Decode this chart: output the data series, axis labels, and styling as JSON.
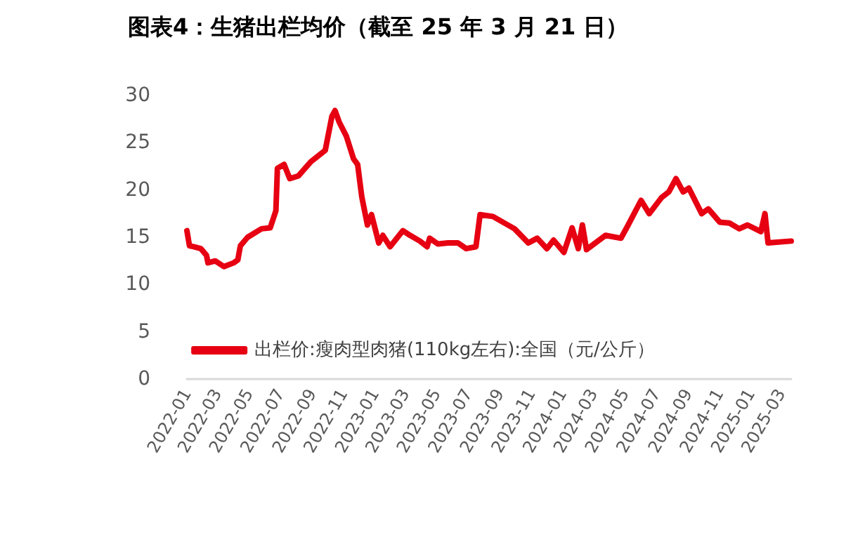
{
  "chart_data": {
    "type": "line",
    "title": "图表4：生猪出栏均价（截至 25 年 3 月 21 日）",
    "x": [
      "2022-01-01",
      "2022-01-06",
      "2022-01-14",
      "2022-01-28",
      "2022-02-08",
      "2022-02-11",
      "2022-02-25",
      "2022-03-14",
      "2022-04-02",
      "2022-04-10",
      "2022-04-15",
      "2022-04-29",
      "2022-05-26",
      "2022-06-12",
      "2022-06-23",
      "2022-06-26",
      "2022-07-09",
      "2022-07-20",
      "2022-08-06",
      "2022-08-30",
      "2022-09-27",
      "2022-10-10",
      "2022-10-16",
      "2022-10-24",
      "2022-11-07",
      "2022-11-21",
      "2022-11-29",
      "2022-12-07",
      "2022-12-18",
      "2022-12-26",
      "2023-01-09",
      "2023-01-17",
      "2023-01-31",
      "2023-02-25",
      "2023-03-11",
      "2023-03-30",
      "2023-04-13",
      "2023-04-18",
      "2023-05-04",
      "2023-05-24",
      "2023-06-12",
      "2023-06-28",
      "2023-07-17",
      "2023-07-25",
      "2023-08-19",
      "2023-09-30",
      "2023-10-27",
      "2023-11-13",
      "2023-12-02",
      "2023-12-15",
      "2024-01-04",
      "2024-01-20",
      "2024-02-01",
      "2024-02-09",
      "2024-02-17",
      "2024-03-25",
      "2024-04-24",
      "2024-05-08",
      "2024-06-02",
      "2024-06-18",
      "2024-07-12",
      "2024-07-26",
      "2024-08-09",
      "2024-08-23",
      "2024-09-03",
      "2024-09-28",
      "2024-10-11",
      "2024-11-02",
      "2024-11-21",
      "2024-12-10",
      "2024-12-26",
      "2025-01-21",
      "2025-01-29",
      "2025-02-04",
      "2025-03-21"
    ],
    "series": [
      {
        "name": "出栏价:瘦肉型肉猪(110kg左右):全国（元/公斤）",
        "color": "#e60012",
        "values": [
          15.7,
          14.1,
          14.0,
          13.8,
          13.1,
          12.3,
          12.5,
          11.9,
          12.3,
          12.6,
          14.1,
          15.0,
          15.9,
          16.0,
          17.8,
          22.3,
          22.7,
          21.2,
          21.5,
          23.0,
          24.2,
          27.8,
          28.4,
          27.2,
          25.7,
          23.3,
          22.7,
          19.3,
          16.3,
          17.4,
          14.4,
          15.2,
          14.0,
          15.7,
          15.2,
          14.6,
          14.0,
          14.9,
          14.3,
          14.4,
          14.4,
          13.8,
          14.0,
          17.4,
          17.2,
          15.9,
          14.4,
          14.9,
          13.8,
          14.7,
          13.4,
          16.0,
          13.8,
          16.3,
          13.7,
          15.2,
          14.9,
          16.3,
          18.9,
          17.5,
          19.2,
          19.8,
          21.2,
          19.8,
          20.2,
          17.5,
          18.0,
          16.6,
          16.5,
          15.9,
          16.3,
          15.6,
          17.5,
          14.4,
          14.6
        ]
      }
    ],
    "xlim": [
      "2022-01-01",
      "2025-03-21"
    ],
    "xticks": [
      "2022-01",
      "2022-03",
      "2022-05",
      "2022-07",
      "2022-09",
      "2022-11",
      "2023-01",
      "2023-03",
      "2023-05",
      "2023-07",
      "2023-09",
      "2023-11",
      "2024-01",
      "2024-03",
      "2024-05",
      "2024-07",
      "2024-09",
      "2024-11",
      "2025-01",
      "2025-03"
    ],
    "ylim": [
      0,
      30
    ],
    "yticks": [
      0,
      5,
      10,
      15,
      20,
      25,
      30
    ],
    "grid": false,
    "legend": "bottom",
    "marker": "none",
    "line_style": "solid"
  }
}
